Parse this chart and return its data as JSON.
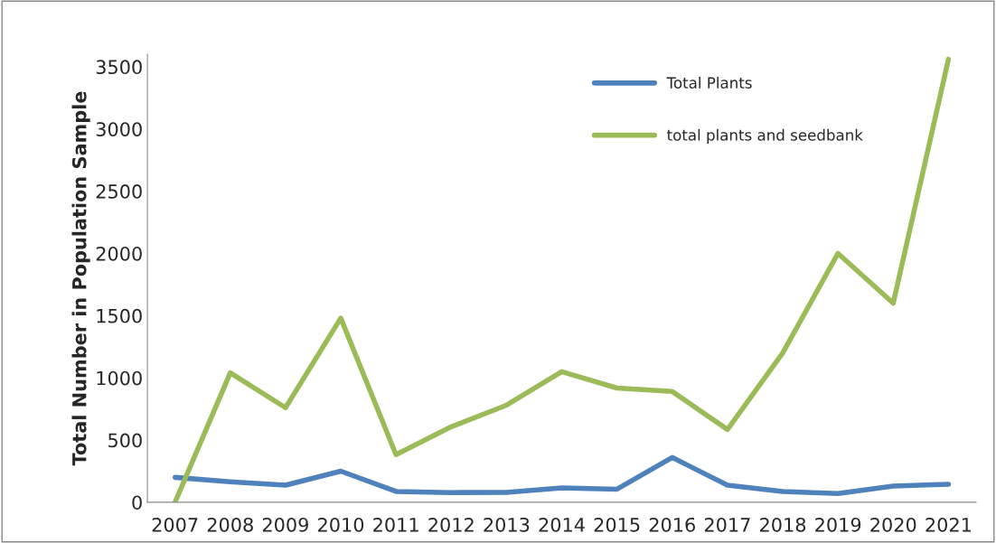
{
  "chart_data": {
    "type": "line",
    "ylabel": "Total Number in Population Sample",
    "categories": [
      "2007",
      "2008",
      "2009",
      "2010",
      "2011",
      "2012",
      "2013",
      "2014",
      "2015",
      "2016",
      "2017",
      "2018",
      "2019",
      "2020",
      "2021"
    ],
    "series": [
      {
        "name": "Total Plants",
        "color": "#4f81bd",
        "values": [
          200,
          165,
          137,
          250,
          87,
          78,
          80,
          115,
          105,
          360,
          137,
          87,
          70,
          130,
          145
        ]
      },
      {
        "name": "total plants and seedbank",
        "color": "#9bbb59",
        "values": [
          0,
          1040,
          760,
          1480,
          383,
          607,
          780,
          1050,
          918,
          890,
          585,
          1200,
          2000,
          1600,
          3560
        ]
      }
    ],
    "ylim": [
      0,
      3600
    ],
    "yticks": [
      0,
      500,
      1000,
      1500,
      2000,
      2500,
      3000,
      3500
    ],
    "grid": false,
    "legend": "top right",
    "marker": "none",
    "line_style": "solid"
  }
}
